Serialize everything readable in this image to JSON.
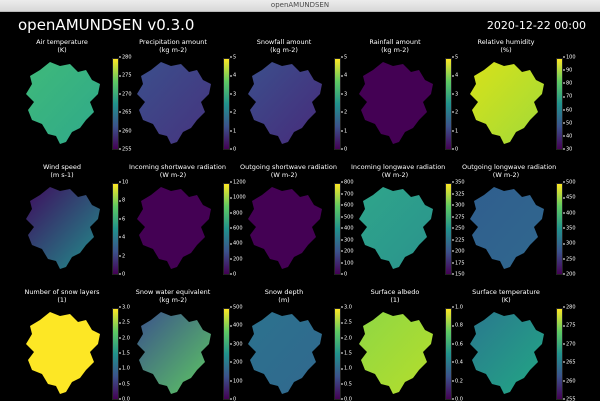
{
  "window": {
    "title": "openAMUNDSEN"
  },
  "app": {
    "title": "openAMUNDSEN v0.3.0",
    "timestamp": "2020-12-22 00:00"
  },
  "panels": [
    {
      "id": "air-temperature",
      "title": "Air temperature",
      "unit": "(K)",
      "ticks": [
        "280",
        "275",
        "270",
        "265",
        "260",
        "255"
      ],
      "fill": [
        "#3fb97a",
        "#2fa98a"
      ]
    },
    {
      "id": "precipitation-amount",
      "title": "Precipitation amount",
      "unit": "(kg m-2)",
      "ticks": [
        "5",
        "4",
        "3",
        "2",
        "1",
        "0"
      ],
      "fill": [
        "#3b4f8c",
        "#46337e"
      ]
    },
    {
      "id": "snowfall-amount",
      "title": "Snowfall amount",
      "unit": "(kg m-2)",
      "ticks": [
        "5",
        "4",
        "3",
        "2",
        "1",
        "0"
      ],
      "fill": [
        "#3b4f8c",
        "#472a7a"
      ]
    },
    {
      "id": "rainfall-amount",
      "title": "Rainfall amount",
      "unit": "(kg m-2)",
      "ticks": [
        "5",
        "4",
        "3",
        "2",
        "1",
        "0"
      ],
      "fill": [
        "#440154",
        "#440154"
      ]
    },
    {
      "id": "relative-humidity",
      "title": "Relative humidity",
      "unit": "(%)",
      "ticks": [
        "100",
        "90",
        "80",
        "70",
        "60",
        "50",
        "40",
        "30"
      ],
      "fill": [
        "#d8e219",
        "#a0da39"
      ]
    },
    {
      "id": "wind-speed",
      "title": "Wind speed",
      "unit": "(m s-1)",
      "ticks": [
        "10",
        "8",
        "6",
        "4",
        "2",
        "0"
      ],
      "fill": [
        "#3e0d5e",
        "#21918c"
      ]
    },
    {
      "id": "incoming-shortwave-radiation",
      "title": "Incoming shortwave radiation",
      "unit": "(W m-2)",
      "ticks": [
        "1200",
        "1000",
        "800",
        "600",
        "400",
        "200",
        "0"
      ],
      "fill": [
        "#440154",
        "#440154"
      ]
    },
    {
      "id": "outgoing-shortwave-radiation",
      "title": "Outgoing shortwave radiation",
      "unit": "(W m-2)",
      "ticks": [
        "800",
        "700",
        "600",
        "500",
        "400",
        "300",
        "200",
        "100",
        "0"
      ],
      "fill": [
        "#440154",
        "#440154"
      ]
    },
    {
      "id": "incoming-longwave-radiation",
      "title": "Incoming longwave radiation",
      "unit": "(W m-2)",
      "ticks": [
        "350",
        "325",
        "300",
        "275",
        "250",
        "225",
        "200",
        "175",
        "150"
      ],
      "fill": [
        "#2fa58b",
        "#2a938c"
      ]
    },
    {
      "id": "outgoing-longwave-radiation",
      "title": "Outgoing longwave radiation",
      "unit": "(W m-2)",
      "ticks": [
        "500",
        "450",
        "400",
        "350",
        "300",
        "250",
        "200"
      ],
      "fill": [
        "#2f5e8e",
        "#31688e"
      ]
    },
    {
      "id": "number-of-snow-layers",
      "title": "Number of snow layers",
      "unit": "(1)",
      "ticks": [
        "3.0",
        "2.5",
        "2.0",
        "1.5",
        "1.0",
        "0.5",
        "0.0"
      ],
      "fill": [
        "#fde725",
        "#fde725"
      ]
    },
    {
      "id": "snow-water-equivalent",
      "title": "Snow water equivalent",
      "unit": "(kg m-2)",
      "ticks": [
        "500",
        "400",
        "300",
        "200",
        "100",
        "0"
      ],
      "fill": [
        "#3b528b",
        "#5ec962"
      ]
    },
    {
      "id": "snow-depth",
      "title": "Snow depth",
      "unit": "(m)",
      "ticks": [
        "3.0",
        "2.5",
        "2.0",
        "1.5",
        "1.0",
        "0.5",
        "0.0"
      ],
      "fill": [
        "#2c728e",
        "#31688e"
      ]
    },
    {
      "id": "surface-albedo",
      "title": "Surface albedo",
      "unit": "(1)",
      "ticks": [
        "1.0",
        "0.8",
        "0.6",
        "0.4",
        "0.2",
        "0.0"
      ],
      "fill": [
        "#8fd744",
        "#b5de2b"
      ]
    },
    {
      "id": "surface-temperature",
      "title": "Surface temperature",
      "unit": "(K)",
      "ticks": [
        "280",
        "275",
        "270",
        "265",
        "260",
        "255"
      ],
      "fill": [
        "#2a788e",
        "#22a884"
      ]
    }
  ]
}
